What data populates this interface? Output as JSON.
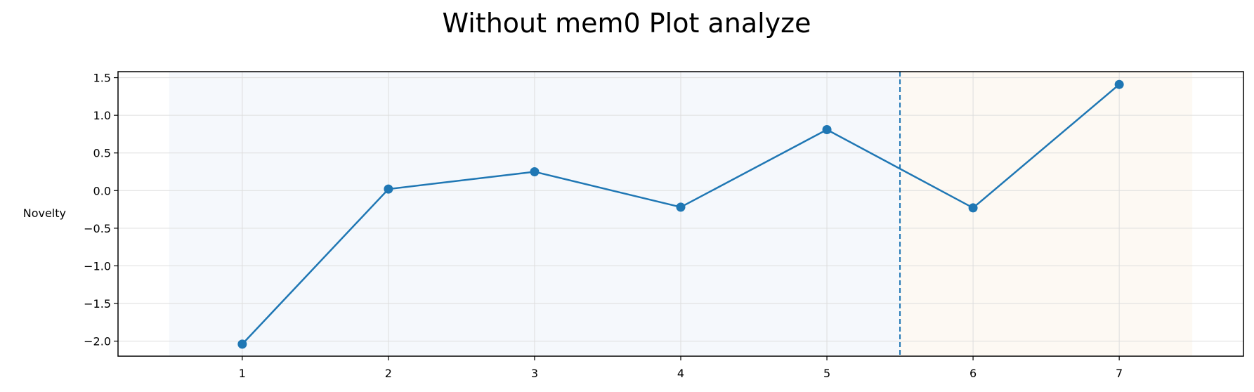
{
  "chart_data": {
    "type": "line",
    "title": "Without mem0 Plot analyze",
    "xlabel": "",
    "ylabel": "Novelty",
    "x": [
      1,
      2,
      3,
      4,
      5,
      6,
      7
    ],
    "series": [
      {
        "values": [
          -2.04,
          0.02,
          0.25,
          -0.22,
          0.81,
          -0.23,
          1.41
        ]
      }
    ],
    "xlim": [
      0.15,
      7.85
    ],
    "ylim": [
      -2.2,
      1.58
    ],
    "xticks": [
      "1",
      "2",
      "3",
      "4",
      "5",
      "6",
      "7"
    ],
    "yticks": [
      "1.5",
      "1.0",
      "0.5",
      "0.0",
      "−0.5",
      "−1.0",
      "−1.5",
      "−2.0"
    ],
    "ytick_values": [
      1.5,
      1.0,
      0.5,
      0.0,
      -0.5,
      -1.0,
      -1.5,
      -2.0
    ],
    "vline_x": 5.5,
    "regions": [
      {
        "x0": 0.5,
        "x1": 5.5,
        "color": "#f5f8fc"
      },
      {
        "x0": 5.5,
        "x1": 7.5,
        "color": "#fdf9f3"
      }
    ],
    "grid": true,
    "colors": {
      "line": "#1f77b4",
      "grid": "#dddddd",
      "axes": "#000000"
    }
  }
}
